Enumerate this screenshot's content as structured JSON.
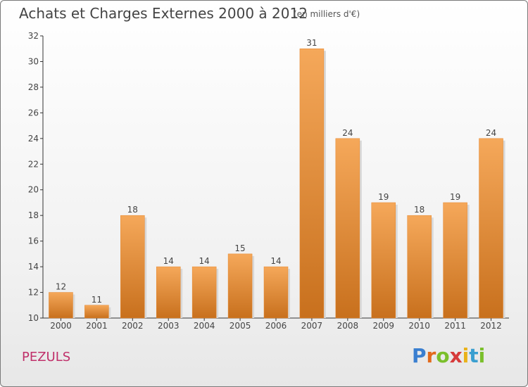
{
  "title": "Achats et Charges Externes 2000 à 2012",
  "subtitle": "(en milliers d'€)",
  "location": "PEZULS",
  "logo": {
    "letters": [
      "P",
      "r",
      "o",
      "x",
      "i",
      "t",
      "i"
    ],
    "colors": [
      "#3a7fd0",
      "#e26a1c",
      "#7abf2b",
      "#d63a3a",
      "#e9b21a",
      "#3a9fd0",
      "#7abf2b"
    ]
  },
  "colors": {
    "bar": "#e5862c",
    "bar_light": "#f5a85a",
    "bar_dark": "#c8701d",
    "axis": "#333333",
    "text": "#444444"
  },
  "chart_data": {
    "type": "bar",
    "categories": [
      "2000",
      "2001",
      "2002",
      "2003",
      "2004",
      "2005",
      "2006",
      "2007",
      "2008",
      "2009",
      "2010",
      "2011",
      "2012"
    ],
    "values": [
      12,
      11,
      18,
      14,
      14,
      15,
      14,
      31,
      24,
      19,
      18,
      19,
      24
    ],
    "data_labels": [
      "12",
      "11",
      "18",
      "14",
      "14",
      "15",
      "14",
      "31",
      "24",
      "19",
      "18",
      "19",
      "24"
    ],
    "ylim": [
      10,
      32
    ],
    "yticks": [
      "10",
      "12",
      "14",
      "16",
      "18",
      "20",
      "22",
      "24",
      "26",
      "28",
      "30",
      "32"
    ],
    "grid": false,
    "legend": "none"
  }
}
